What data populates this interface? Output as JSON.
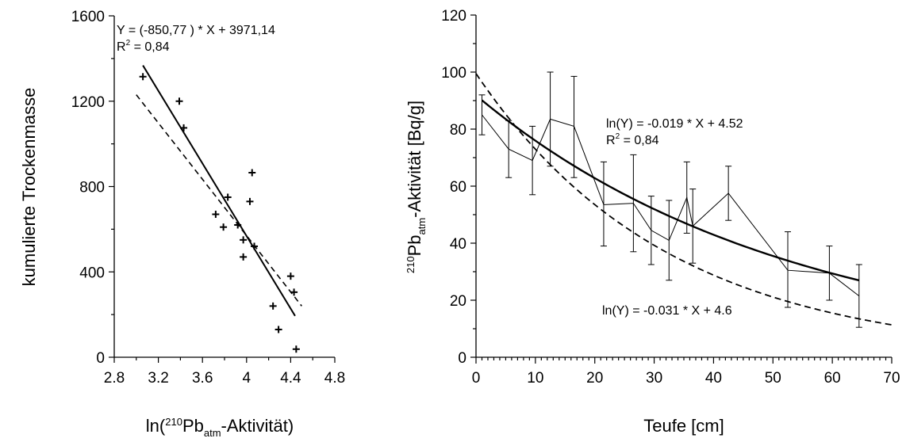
{
  "chart_data": [
    {
      "type": "scatter",
      "xlabel_prefix": "ln(",
      "xlabel_sup": "210",
      "xlabel_main": "Pb",
      "xlabel_sub": "atm",
      "xlabel_suffix": "-Aktivität)",
      "ylabel": "kumulierte Trockenmasse",
      "xlim": [
        2.8,
        4.8
      ],
      "ylim": [
        0,
        1600
      ],
      "xticks": [
        "2.8",
        "3.2",
        "3.6",
        "4",
        "4.4",
        "4.8"
      ],
      "yticks": [
        "0",
        "400",
        "800",
        "1200",
        "1600"
      ],
      "points": [
        {
          "x": 3.06,
          "y": 1315
        },
        {
          "x": 3.39,
          "y": 1200
        },
        {
          "x": 3.43,
          "y": 1075
        },
        {
          "x": 3.72,
          "y": 670
        },
        {
          "x": 3.79,
          "y": 610
        },
        {
          "x": 3.83,
          "y": 750
        },
        {
          "x": 3.92,
          "y": 620
        },
        {
          "x": 3.97,
          "y": 550
        },
        {
          "x": 3.97,
          "y": 470
        },
        {
          "x": 4.03,
          "y": 730
        },
        {
          "x": 4.05,
          "y": 865
        },
        {
          "x": 4.07,
          "y": 520
        },
        {
          "x": 4.24,
          "y": 240
        },
        {
          "x": 4.29,
          "y": 130
        },
        {
          "x": 4.4,
          "y": 380
        },
        {
          "x": 4.43,
          "y": 305
        },
        {
          "x": 4.45,
          "y": 38
        }
      ],
      "fit_solid": {
        "x": [
          3.06,
          4.44
        ]
      },
      "fit_dashed": {
        "x": [
          3.0,
          4.5
        ],
        "y": [
          1230,
          240
        ]
      },
      "annotation_line1": "Y = (-850,77 ) * X + 3971,14",
      "annotation_line2_prefix": "R",
      "annotation_line2_sup": "2",
      "annotation_line2_suffix": " = 0,84"
    },
    {
      "type": "line",
      "xlabel": "Teufe [cm]",
      "ylabel_sup": "210",
      "ylabel_main": "Pb",
      "ylabel_sub": "atm",
      "ylabel_suffix": "-Aktivität [Bq/g]",
      "xlim": [
        0,
        70
      ],
      "ylim": [
        0,
        120
      ],
      "xticks": [
        "0",
        "10",
        "20",
        "30",
        "40",
        "50",
        "60",
        "70"
      ],
      "yticks": [
        "0",
        "20",
        "40",
        "60",
        "80",
        "100",
        "120"
      ],
      "measured": [
        {
          "x": 1,
          "y": 85,
          "err_low": 78,
          "err_high": 92
        },
        {
          "x": 5.5,
          "y": 73,
          "err_low": 63,
          "err_high": 83
        },
        {
          "x": 9.5,
          "y": 69,
          "err_low": 57,
          "err_high": 81
        },
        {
          "x": 12.5,
          "y": 83.5,
          "err_low": 67,
          "err_high": 100
        },
        {
          "x": 16.5,
          "y": 81,
          "err_low": 63,
          "err_high": 98.5
        },
        {
          "x": 21.5,
          "y": 53.5,
          "err_low": 39,
          "err_high": 68.5
        },
        {
          "x": 26.5,
          "y": 54,
          "err_low": 37,
          "err_high": 71
        },
        {
          "x": 29.5,
          "y": 44.5,
          "err_low": 32.5,
          "err_high": 56.5
        },
        {
          "x": 32.5,
          "y": 41,
          "err_low": 27,
          "err_high": 55
        },
        {
          "x": 35.5,
          "y": 56,
          "err_low": 43.5,
          "err_high": 68.5
        },
        {
          "x": 36.5,
          "y": 46,
          "err_low": 33,
          "err_high": 59
        },
        {
          "x": 42.5,
          "y": 57.5,
          "err_low": 48,
          "err_high": 67
        },
        {
          "x": 52.5,
          "y": 30.5,
          "err_low": 17.5,
          "err_high": 44
        },
        {
          "x": 59.5,
          "y": 29.5,
          "err_low": 20,
          "err_high": 39
        },
        {
          "x": 64.5,
          "y": 21.5,
          "err_low": 10.5,
          "err_high": 32.5
        }
      ],
      "fit_solid": {
        "a": -0.019,
        "b": 4.52,
        "x": [
          1,
          64.5
        ]
      },
      "fit_dashed": {
        "a": -0.031,
        "b": 4.6,
        "x": [
          0,
          70
        ]
      },
      "annotation_line1": "ln(Y) = -0.019 * X + 4.52",
      "annotation_line2_prefix": "R",
      "annotation_line2_sup": "2",
      "annotation_line2_suffix": " = 0,84",
      "annotation_line3": "ln(Y) = -0.031 * X + 4.6"
    }
  ]
}
